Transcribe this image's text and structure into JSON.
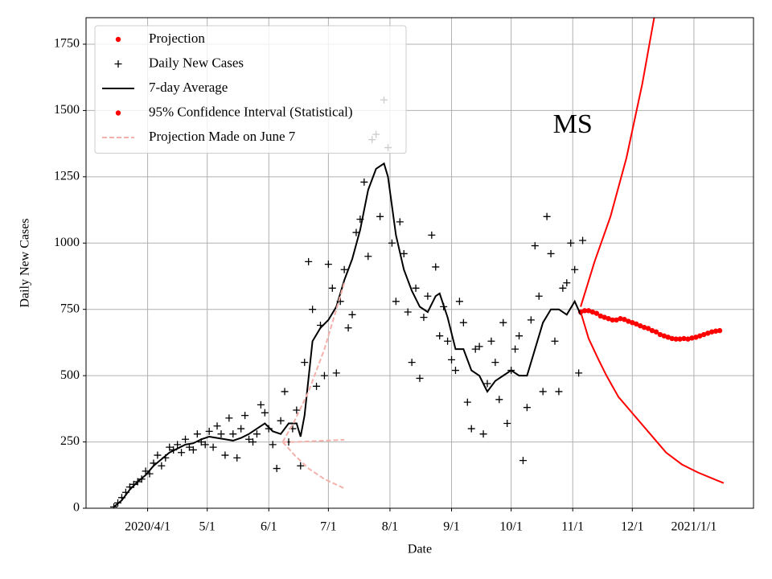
{
  "chart_data": {
    "type": "line",
    "annotation": {
      "text": "MS",
      "x": 305,
      "y": 1440
    },
    "xlabel": "Date",
    "ylabel": "Daily New Cases",
    "xlim": [
      60,
      396
    ],
    "ylim": [
      0,
      1850
    ],
    "xticks": [
      {
        "value": 91,
        "label": "2020/4/1"
      },
      {
        "value": 121,
        "label": "5/1"
      },
      {
        "value": 152,
        "label": "6/1"
      },
      {
        "value": 182,
        "label": "7/1"
      },
      {
        "value": 213,
        "label": "8/1"
      },
      {
        "value": 244,
        "label": "9/1"
      },
      {
        "value": 274,
        "label": "10/1"
      },
      {
        "value": 305,
        "label": "11/1"
      },
      {
        "value": 335,
        "label": "12/1"
      },
      {
        "value": 366,
        "label": "2021/1/1"
      }
    ],
    "yticks": [
      0,
      250,
      500,
      750,
      1000,
      1250,
      1500,
      1750
    ],
    "grid": true,
    "legend": "upper left",
    "series": [
      {
        "name": "Projection",
        "color": "#ff0000",
        "marker": "dot",
        "x": [
          309,
          311,
          313,
          315,
          317,
          319,
          321,
          323,
          325,
          327,
          329,
          331,
          333,
          335,
          337,
          339,
          341,
          343,
          345,
          347,
          349,
          351,
          353,
          355,
          357,
          359,
          361,
          363,
          365,
          367,
          369,
          371,
          373,
          375,
          377,
          379
        ],
        "values": [
          740,
          745,
          745,
          740,
          735,
          725,
          720,
          715,
          710,
          710,
          715,
          712,
          705,
          700,
          695,
          688,
          682,
          678,
          670,
          665,
          655,
          650,
          645,
          640,
          638,
          638,
          640,
          638,
          642,
          645,
          650,
          655,
          660,
          665,
          668,
          670
        ]
      },
      {
        "name": "Daily New Cases",
        "color": "#000000",
        "marker": "plus",
        "x": [
          74,
          76,
          78,
          80,
          82,
          84,
          86,
          88,
          90,
          92,
          94,
          96,
          98,
          100,
          102,
          104,
          106,
          108,
          110,
          112,
          114,
          116,
          118,
          120,
          122,
          124,
          126,
          128,
          130,
          132,
          134,
          136,
          138,
          140,
          142,
          144,
          146,
          148,
          150,
          152,
          154,
          156,
          158,
          160,
          162,
          164,
          166,
          168,
          170,
          172,
          174,
          176,
          178,
          180,
          182,
          184,
          186,
          188,
          190,
          192,
          194,
          196,
          198,
          200,
          202,
          204,
          206,
          208,
          210,
          212,
          214,
          216,
          218,
          220,
          222,
          224,
          226,
          228,
          230,
          232,
          234,
          236,
          238,
          240,
          242,
          244,
          246,
          248,
          250,
          252,
          254,
          256,
          258,
          260,
          262,
          264,
          266,
          268,
          270,
          272,
          274,
          276,
          278,
          280,
          282,
          284,
          286,
          288,
          290,
          292,
          294,
          296,
          298,
          300,
          302,
          304,
          306,
          308,
          310
        ],
        "values": [
          5,
          20,
          40,
          60,
          80,
          90,
          100,
          110,
          140,
          130,
          170,
          200,
          160,
          190,
          230,
          220,
          240,
          210,
          260,
          230,
          220,
          280,
          250,
          240,
          290,
          230,
          310,
          280,
          200,
          340,
          280,
          190,
          300,
          350,
          260,
          250,
          280,
          390,
          360,
          300,
          240,
          150,
          330,
          440,
          250,
          300,
          370,
          160,
          550,
          930,
          750,
          460,
          690,
          500,
          920,
          830,
          510,
          780,
          900,
          680,
          730,
          1040,
          1090,
          1230,
          950,
          1390,
          1410,
          1100,
          1540,
          1360,
          1000,
          780,
          1080,
          960,
          740,
          550,
          830,
          490,
          720,
          800,
          1030,
          910,
          650,
          760,
          630,
          560,
          520,
          780,
          700,
          400,
          300,
          600,
          610,
          280,
          470,
          630,
          550,
          410,
          700,
          320,
          520,
          600,
          650,
          180,
          380,
          710,
          990,
          800,
          440,
          1100,
          960,
          630,
          440,
          830,
          850,
          1000,
          900,
          510,
          1010
        ]
      },
      {
        "name": "7-day Average",
        "color": "#000000",
        "marker": "line",
        "x": [
          74,
          78,
          82,
          86,
          90,
          94,
          98,
          102,
          106,
          110,
          114,
          118,
          122,
          126,
          130,
          134,
          138,
          142,
          146,
          150,
          154,
          158,
          162,
          166,
          168,
          170,
          174,
          178,
          182,
          186,
          190,
          194,
          198,
          202,
          206,
          210,
          212,
          216,
          220,
          224,
          228,
          232,
          236,
          238,
          242,
          246,
          250,
          254,
          258,
          262,
          266,
          270,
          274,
          278,
          282,
          286,
          290,
          294,
          298,
          302,
          306,
          309
        ],
        "values": [
          5,
          30,
          70,
          100,
          125,
          160,
          185,
          210,
          225,
          240,
          245,
          260,
          270,
          265,
          260,
          255,
          265,
          280,
          300,
          320,
          290,
          280,
          320,
          320,
          270,
          350,
          630,
          680,
          710,
          760,
          860,
          940,
          1050,
          1200,
          1280,
          1300,
          1250,
          1030,
          900,
          820,
          760,
          740,
          800,
          810,
          720,
          600,
          600,
          520,
          500,
          440,
          480,
          500,
          520,
          500,
          500,
          600,
          700,
          750,
          750,
          730,
          780,
          730
        ]
      },
      {
        "name": "95% Confidence Interval (Statistical)",
        "color": "#ff0000",
        "marker": "line",
        "legend_marker": "dot",
        "x": [
          309,
          316,
          324,
          332,
          340,
          346
        ],
        "values": [
          760,
          930,
          1100,
          1320,
          1600,
          1850
        ]
      },
      {
        "color": "#ff0000",
        "marker": "line",
        "x": [
          309,
          313,
          318,
          322,
          328,
          336,
          344,
          352,
          360,
          368,
          376,
          381
        ],
        "values": [
          740,
          640,
          560,
          500,
          420,
          350,
          280,
          210,
          165,
          135,
          110,
          95
        ]
      },
      {
        "name": "Projection Made on June 7",
        "color": "#f4b0aa",
        "marker": "dashed",
        "x": [
          159,
          165,
          172,
          180,
          190
        ],
        "values": [
          250,
          250,
          252,
          255,
          258
        ]
      },
      {
        "color": "#f4b0aa",
        "marker": "dashed",
        "x": [
          159,
          165,
          172,
          180,
          186,
          190
        ],
        "values": [
          250,
          330,
          440,
          600,
          750,
          850
        ]
      },
      {
        "color": "#f4b0aa",
        "marker": "dashed",
        "x": [
          159,
          165,
          172,
          180,
          190
        ],
        "values": [
          250,
          200,
          150,
          110,
          75
        ]
      }
    ]
  }
}
